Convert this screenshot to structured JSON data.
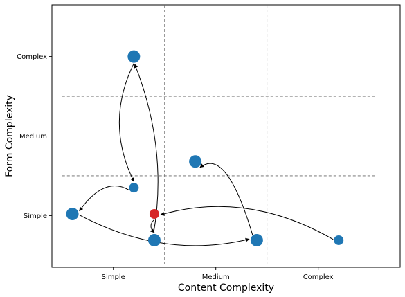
{
  "chart_data": {
    "type": "scatter",
    "title": "",
    "xlabel": "Content Complexity",
    "ylabel": "Form Complexity",
    "x_ticks": [
      {
        "label": "Simple",
        "value": 0
      },
      {
        "label": "Medium",
        "value": 1
      },
      {
        "label": "Complex",
        "value": 2
      }
    ],
    "y_ticks": [
      {
        "label": "Simple",
        "value": 0
      },
      {
        "label": "Medium",
        "value": 1
      },
      {
        "label": "Complex",
        "value": 2
      }
    ],
    "xlim": [
      -0.6,
      2.8
    ],
    "ylim": [
      -0.65,
      2.65
    ],
    "grid": "dashed category boundaries",
    "points": [
      {
        "id": "p1",
        "x": -0.4,
        "y": 0.02,
        "size": "large",
        "color": "#1f77b4"
      },
      {
        "id": "p2",
        "x": 0.2,
        "y": 0.35,
        "size": "small",
        "color": "#1f77b4"
      },
      {
        "id": "p3",
        "x": 0.2,
        "y": 2.0,
        "size": "large",
        "color": "#1f77b4"
      },
      {
        "id": "p4",
        "x": 0.4,
        "y": -0.31,
        "size": "large",
        "color": "#1f77b4"
      },
      {
        "id": "p5",
        "x": 0.4,
        "y": 0.02,
        "size": "small",
        "color": "#d62728"
      },
      {
        "id": "p6",
        "x": 0.8,
        "y": 0.68,
        "size": "large",
        "color": "#1f77b4"
      },
      {
        "id": "p7",
        "x": 1.4,
        "y": -0.31,
        "size": "large",
        "color": "#1f77b4"
      },
      {
        "id": "p8",
        "x": 2.2,
        "y": -0.31,
        "size": "small",
        "color": "#1f77b4"
      }
    ],
    "arrows": [
      {
        "from": "p3",
        "to": "p2",
        "curve": "left"
      },
      {
        "from": "p2",
        "to": "p1",
        "curve": "up"
      },
      {
        "from": "p1",
        "to": "p7",
        "curve": "down"
      },
      {
        "from": "p4",
        "to": "p3",
        "curve": "right"
      },
      {
        "from": "p5",
        "to": "p4",
        "curve": "tight"
      },
      {
        "from": "p8",
        "to": "p5",
        "curve": "up"
      },
      {
        "from": "p7",
        "to": "p6",
        "curve": "up"
      }
    ],
    "colors": {
      "point": "#1f77b4",
      "highlight": "#d62728",
      "arrow": "#000000",
      "grid": "#666666"
    }
  }
}
